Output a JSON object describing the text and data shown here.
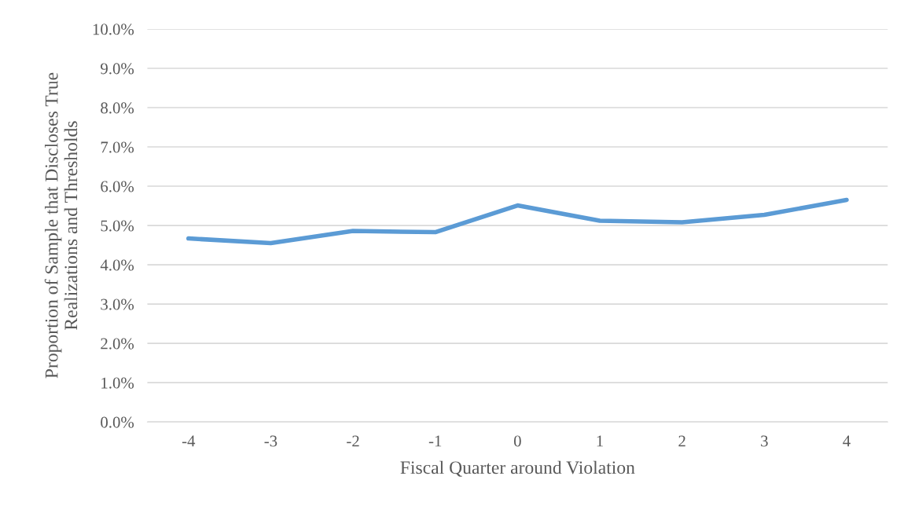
{
  "chart_data": {
    "type": "line",
    "xlabel": "Fiscal Quarter around Violation",
    "ylabel": "Proportion of Sample that Discloses True\nRealizations and Thresholds",
    "categories": [
      "-4",
      "-3",
      "-2",
      "-1",
      "0",
      "1",
      "2",
      "3",
      "4"
    ],
    "series": [
      {
        "color": "#5b9bd5",
        "values": [
          4.67,
          4.55,
          4.86,
          4.83,
          5.51,
          5.12,
          5.08,
          5.27,
          5.65
        ]
      }
    ],
    "ylim": [
      0,
      10
    ],
    "yticks": [
      {
        "value": 0,
        "label": "0.0%"
      },
      {
        "value": 1,
        "label": "1.0%"
      },
      {
        "value": 2,
        "label": "2.0%"
      },
      {
        "value": 3,
        "label": "3.0%"
      },
      {
        "value": 4,
        "label": "4.0%"
      },
      {
        "value": 5,
        "label": "5.0%"
      },
      {
        "value": 6,
        "label": "6.0%"
      },
      {
        "value": 7,
        "label": "7.0%"
      },
      {
        "value": 8,
        "label": "8.0%"
      },
      {
        "value": 9,
        "label": "9.0%"
      },
      {
        "value": 10,
        "label": "10.0%"
      }
    ],
    "grid": "y",
    "marker": "none",
    "line_style": "solid"
  }
}
